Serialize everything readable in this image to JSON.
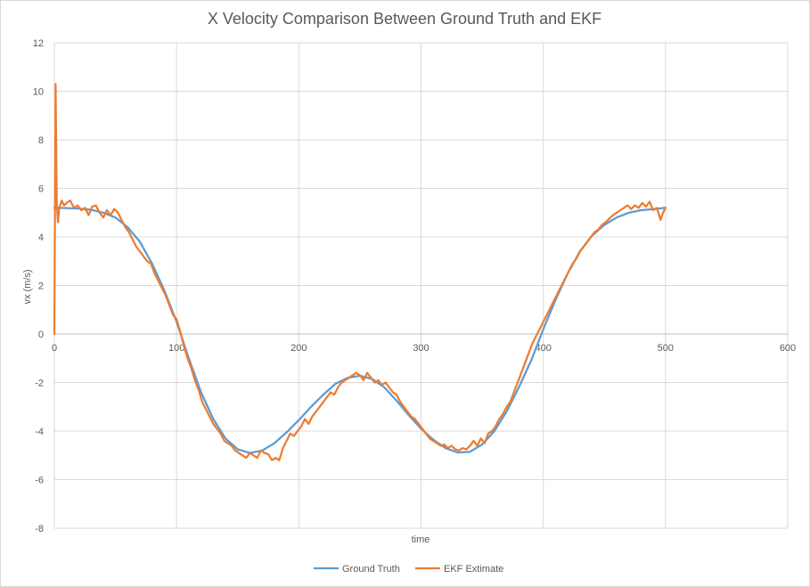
{
  "chart_data": {
    "type": "line",
    "title": "X Velocity Comparison Between Ground Truth and EKF",
    "xlabel": "time",
    "ylabel": "vx (m/s)",
    "xlim": [
      0,
      600
    ],
    "ylim": [
      -8,
      12
    ],
    "x_ticks": [
      0,
      100,
      200,
      300,
      400,
      500,
      600
    ],
    "y_ticks": [
      -8,
      -6,
      -4,
      -2,
      0,
      2,
      4,
      6,
      8,
      10,
      12
    ],
    "grid": true,
    "legend_position": "bottom",
    "series": [
      {
        "name": "Ground Truth",
        "color": "#5b9bd5",
        "points": [
          [
            0,
            5.2
          ],
          [
            10,
            5.19
          ],
          [
            20,
            5.17
          ],
          [
            30,
            5.12
          ],
          [
            40,
            5.0
          ],
          [
            50,
            4.8
          ],
          [
            60,
            4.4
          ],
          [
            70,
            3.8
          ],
          [
            80,
            2.9
          ],
          [
            90,
            1.8
          ],
          [
            100,
            0.5
          ],
          [
            110,
            -1.0
          ],
          [
            120,
            -2.4
          ],
          [
            130,
            -3.5
          ],
          [
            140,
            -4.3
          ],
          [
            150,
            -4.75
          ],
          [
            160,
            -4.9
          ],
          [
            170,
            -4.8
          ],
          [
            180,
            -4.5
          ],
          [
            190,
            -4.05
          ],
          [
            200,
            -3.55
          ],
          [
            210,
            -3.0
          ],
          [
            220,
            -2.5
          ],
          [
            230,
            -2.05
          ],
          [
            240,
            -1.8
          ],
          [
            250,
            -1.72
          ],
          [
            260,
            -1.85
          ],
          [
            270,
            -2.2
          ],
          [
            280,
            -2.75
          ],
          [
            290,
            -3.35
          ],
          [
            300,
            -3.9
          ],
          [
            310,
            -4.35
          ],
          [
            320,
            -4.7
          ],
          [
            330,
            -4.88
          ],
          [
            340,
            -4.85
          ],
          [
            350,
            -4.55
          ],
          [
            360,
            -4.0
          ],
          [
            370,
            -3.2
          ],
          [
            380,
            -2.2
          ],
          [
            390,
            -1.1
          ],
          [
            400,
            0.2
          ],
          [
            410,
            1.4
          ],
          [
            420,
            2.5
          ],
          [
            430,
            3.4
          ],
          [
            440,
            4.05
          ],
          [
            450,
            4.5
          ],
          [
            460,
            4.8
          ],
          [
            470,
            5.0
          ],
          [
            480,
            5.1
          ],
          [
            490,
            5.15
          ],
          [
            500,
            5.2
          ]
        ]
      },
      {
        "name": "EKF Extimate",
        "color": "#ed7d31",
        "points": [
          [
            0,
            0
          ],
          [
            1,
            10.3
          ],
          [
            2,
            5.4
          ],
          [
            3,
            4.6
          ],
          [
            4,
            5.2
          ],
          [
            6,
            5.5
          ],
          [
            8,
            5.3
          ],
          [
            10,
            5.4
          ],
          [
            13,
            5.5
          ],
          [
            16,
            5.2
          ],
          [
            19,
            5.3
          ],
          [
            22,
            5.1
          ],
          [
            25,
            5.2
          ],
          [
            28,
            4.9
          ],
          [
            31,
            5.25
          ],
          [
            34,
            5.3
          ],
          [
            37,
            5.0
          ],
          [
            40,
            4.8
          ],
          [
            43,
            5.1
          ],
          [
            46,
            4.9
          ],
          [
            49,
            5.15
          ],
          [
            52,
            5.0
          ],
          [
            55,
            4.7
          ],
          [
            58,
            4.4
          ],
          [
            61,
            4.2
          ],
          [
            64,
            3.9
          ],
          [
            67,
            3.6
          ],
          [
            70,
            3.4
          ],
          [
            73,
            3.2
          ],
          [
            76,
            3.0
          ],
          [
            79,
            2.9
          ],
          [
            82,
            2.5
          ],
          [
            85,
            2.2
          ],
          [
            88,
            1.9
          ],
          [
            91,
            1.6
          ],
          [
            94,
            1.2
          ],
          [
            97,
            0.8
          ],
          [
            100,
            0.6
          ],
          [
            103,
            0.1
          ],
          [
            106,
            -0.5
          ],
          [
            109,
            -1.0
          ],
          [
            112,
            -1.4
          ],
          [
            115,
            -1.9
          ],
          [
            118,
            -2.3
          ],
          [
            121,
            -2.8
          ],
          [
            124,
            -3.1
          ],
          [
            127,
            -3.4
          ],
          [
            130,
            -3.7
          ],
          [
            133,
            -3.9
          ],
          [
            136,
            -4.1
          ],
          [
            139,
            -4.4
          ],
          [
            142,
            -4.5
          ],
          [
            145,
            -4.6
          ],
          [
            148,
            -4.8
          ],
          [
            151,
            -4.9
          ],
          [
            154,
            -5.0
          ],
          [
            157,
            -5.1
          ],
          [
            160,
            -4.9
          ],
          [
            163,
            -5.0
          ],
          [
            166,
            -5.1
          ],
          [
            169,
            -4.8
          ],
          [
            172,
            -4.9
          ],
          [
            175,
            -4.95
          ],
          [
            178,
            -5.2
          ],
          [
            181,
            -5.1
          ],
          [
            184,
            -5.2
          ],
          [
            187,
            -4.7
          ],
          [
            190,
            -4.4
          ],
          [
            193,
            -4.1
          ],
          [
            196,
            -4.2
          ],
          [
            199,
            -4.0
          ],
          [
            202,
            -3.8
          ],
          [
            205,
            -3.5
          ],
          [
            208,
            -3.7
          ],
          [
            211,
            -3.4
          ],
          [
            214,
            -3.2
          ],
          [
            217,
            -3.0
          ],
          [
            220,
            -2.8
          ],
          [
            223,
            -2.6
          ],
          [
            226,
            -2.4
          ],
          [
            229,
            -2.5
          ],
          [
            232,
            -2.2
          ],
          [
            235,
            -2.0
          ],
          [
            238,
            -1.9
          ],
          [
            241,
            -1.8
          ],
          [
            244,
            -1.7
          ],
          [
            247,
            -1.6
          ],
          [
            250,
            -1.7
          ],
          [
            253,
            -1.9
          ],
          [
            256,
            -1.6
          ],
          [
            259,
            -1.8
          ],
          [
            262,
            -2.0
          ],
          [
            265,
            -1.9
          ],
          [
            268,
            -2.1
          ],
          [
            271,
            -2.0
          ],
          [
            274,
            -2.2
          ],
          [
            277,
            -2.4
          ],
          [
            280,
            -2.5
          ],
          [
            283,
            -2.8
          ],
          [
            286,
            -3.0
          ],
          [
            289,
            -3.2
          ],
          [
            292,
            -3.4
          ],
          [
            295,
            -3.5
          ],
          [
            298,
            -3.7
          ],
          [
            301,
            -3.9
          ],
          [
            304,
            -4.1
          ],
          [
            307,
            -4.3
          ],
          [
            310,
            -4.4
          ],
          [
            313,
            -4.5
          ],
          [
            316,
            -4.6
          ],
          [
            319,
            -4.55
          ],
          [
            322,
            -4.7
          ],
          [
            325,
            -4.6
          ],
          [
            328,
            -4.75
          ],
          [
            331,
            -4.8
          ],
          [
            334,
            -4.7
          ],
          [
            337,
            -4.75
          ],
          [
            340,
            -4.6
          ],
          [
            343,
            -4.4
          ],
          [
            346,
            -4.6
          ],
          [
            349,
            -4.3
          ],
          [
            352,
            -4.5
          ],
          [
            355,
            -4.1
          ],
          [
            358,
            -4.0
          ],
          [
            361,
            -3.8
          ],
          [
            364,
            -3.5
          ],
          [
            367,
            -3.3
          ],
          [
            370,
            -3.0
          ],
          [
            373,
            -2.8
          ],
          [
            376,
            -2.4
          ],
          [
            379,
            -2.0
          ],
          [
            382,
            -1.6
          ],
          [
            385,
            -1.2
          ],
          [
            388,
            -0.8
          ],
          [
            391,
            -0.4
          ],
          [
            394,
            -0.1
          ],
          [
            397,
            0.2
          ],
          [
            400,
            0.5
          ],
          [
            403,
            0.8
          ],
          [
            406,
            1.1
          ],
          [
            409,
            1.4
          ],
          [
            412,
            1.7
          ],
          [
            415,
            2.0
          ],
          [
            418,
            2.3
          ],
          [
            421,
            2.6
          ],
          [
            424,
            2.9
          ],
          [
            427,
            3.1
          ],
          [
            430,
            3.4
          ],
          [
            433,
            3.6
          ],
          [
            436,
            3.8
          ],
          [
            439,
            4.0
          ],
          [
            442,
            4.2
          ],
          [
            445,
            4.3
          ],
          [
            448,
            4.5
          ],
          [
            451,
            4.6
          ],
          [
            454,
            4.75
          ],
          [
            457,
            4.9
          ],
          [
            460,
            5.0
          ],
          [
            463,
            5.1
          ],
          [
            466,
            5.2
          ],
          [
            469,
            5.3
          ],
          [
            472,
            5.15
          ],
          [
            475,
            5.3
          ],
          [
            478,
            5.2
          ],
          [
            481,
            5.4
          ],
          [
            484,
            5.25
          ],
          [
            487,
            5.45
          ],
          [
            490,
            5.1
          ],
          [
            493,
            5.2
          ],
          [
            496,
            4.7
          ],
          [
            498,
            5.0
          ],
          [
            500,
            5.2
          ]
        ]
      }
    ]
  }
}
